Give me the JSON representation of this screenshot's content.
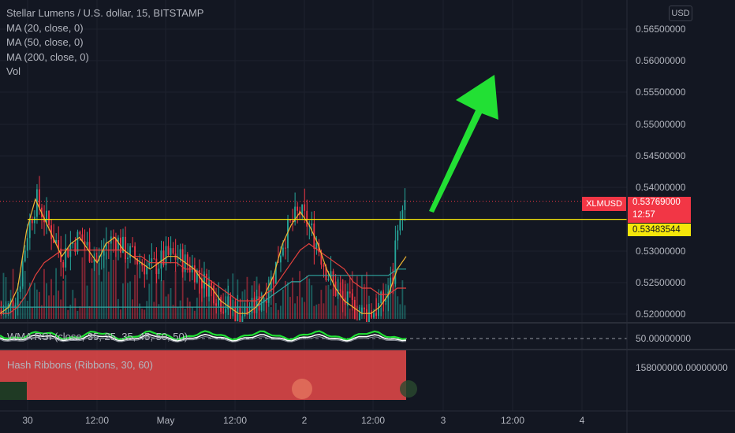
{
  "legend": {
    "title": "Stellar Lumens / U.S. dollar, 15, BITSTAMP",
    "ma20": "MA (20, close, 0)",
    "ma50": "MA (50, close, 0)",
    "ma200": "MA (200, close, 0)",
    "vol": "Vol"
  },
  "currency_button": "USD",
  "price_axis": [
    "0.56500000",
    "0.56000000",
    "0.55500000",
    "0.55000000",
    "0.54500000",
    "0.54000000",
    "0.53000000",
    "0.52500000",
    "0.52000000"
  ],
  "price_box_symbol": "XLMUSD",
  "last_price": "0.53769000",
  "countdown": "12:57",
  "horizontal_level": "0.53483544",
  "rsi_panel": {
    "legend": "WMA RSI (close, 35, 25, 35, 45, 50, 50)",
    "axis_label": "50.00000000"
  },
  "hash_panel": {
    "legend": "Hash Ribbons (Ribbons, 30, 60)",
    "axis_label": "158000000.00000000"
  },
  "time_axis": [
    "30",
    "12:00",
    "May",
    "12:00",
    "2",
    "12:00",
    "3",
    "12:00",
    "4"
  ],
  "colors": {
    "background": "#131722",
    "up": "#26a69a",
    "down": "#f23645",
    "ma20": "#f2b632",
    "ma50": "#e1413d",
    "ma200": "#2fa6a0",
    "level": "#f5e60a",
    "arrow": "#22e034",
    "hash": "#e04848"
  },
  "chart_data": {
    "type": "candlestick",
    "title": "Stellar Lumens / U.S. dollar, 15, BITSTAMP",
    "ylim": [
      0.519,
      0.567
    ],
    "x_ticks": [
      "30",
      "12:00",
      "May",
      "12:00",
      "2",
      "12:00",
      "3",
      "12:00",
      "4"
    ],
    "last_price": 0.53769,
    "horizontal_level": 0.53483544,
    "series": [
      {
        "name": "MA (20, close, 0)",
        "values": [
          0.52,
          0.521,
          0.524,
          0.533,
          0.538,
          0.535,
          0.532,
          0.529,
          0.531,
          0.532,
          0.53,
          0.528,
          0.531,
          0.532,
          0.53,
          0.529,
          0.528,
          0.527,
          0.528,
          0.529,
          0.529,
          0.528,
          0.527,
          0.525,
          0.524,
          0.522,
          0.521,
          0.52,
          0.52,
          0.521,
          0.523,
          0.526,
          0.531,
          0.534,
          0.536,
          0.534,
          0.531,
          0.527,
          0.524,
          0.522,
          0.521,
          0.52,
          0.52,
          0.521,
          0.523,
          0.527,
          0.529
        ]
      },
      {
        "name": "MA (50, close, 0)",
        "values": [
          0.52,
          0.52,
          0.521,
          0.523,
          0.526,
          0.528,
          0.529,
          0.53,
          0.53,
          0.53,
          0.53,
          0.53,
          0.53,
          0.53,
          0.53,
          0.529,
          0.529,
          0.528,
          0.528,
          0.528,
          0.528,
          0.527,
          0.527,
          0.526,
          0.525,
          0.524,
          0.523,
          0.522,
          0.522,
          0.522,
          0.523,
          0.524,
          0.526,
          0.528,
          0.53,
          0.531,
          0.53,
          0.529,
          0.528,
          0.527,
          0.525,
          0.524,
          0.524,
          0.523,
          0.523,
          0.524,
          0.524
        ]
      },
      {
        "name": "MA (200, close, 0)",
        "values": [
          0.521,
          0.521,
          0.521,
          0.521,
          0.521,
          0.521,
          0.521,
          0.521,
          0.521,
          0.521,
          0.521,
          0.521,
          0.521,
          0.521,
          0.521,
          0.521,
          0.521,
          0.521,
          0.521,
          0.521,
          0.521,
          0.521,
          0.521,
          0.521,
          0.521,
          0.521,
          0.521,
          0.521,
          0.521,
          0.521,
          0.522,
          0.523,
          0.524,
          0.525,
          0.525,
          0.526,
          0.526,
          0.526,
          0.526,
          0.526,
          0.526,
          0.526,
          0.526,
          0.526,
          0.526,
          0.527,
          0.527
        ]
      }
    ]
  }
}
